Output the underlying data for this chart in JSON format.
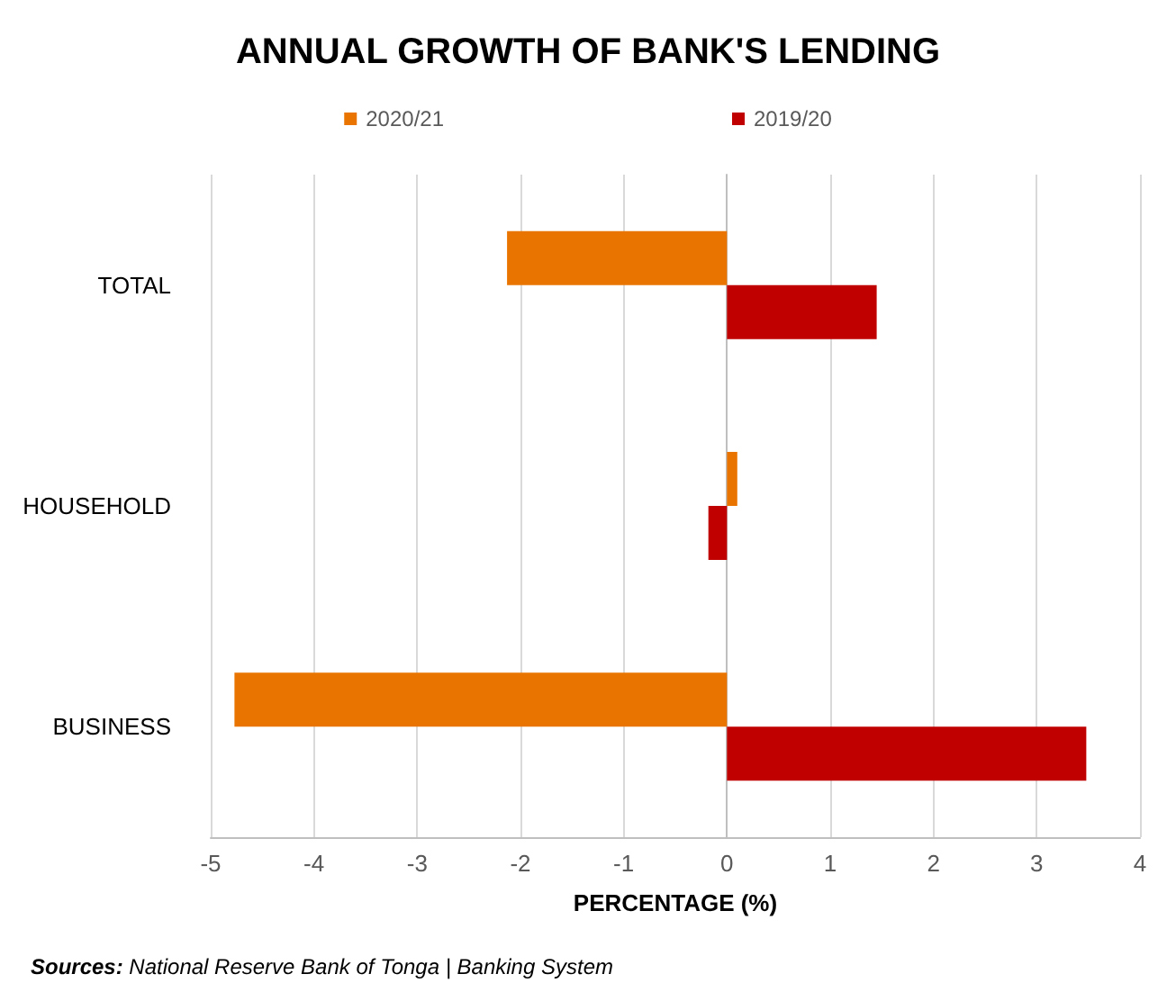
{
  "chart_data": {
    "type": "bar",
    "orientation": "horizontal",
    "title": "ANNUAL GROWTH OF BANK'S LENDING",
    "xlabel": "PERCENTAGE (%)",
    "categories": [
      "TOTAL",
      "HOUSEHOLD",
      "BUSINESS"
    ],
    "series": [
      {
        "name": "2020/21",
        "color": "#e97500",
        "values": [
          -2.13,
          0.1,
          -4.77
        ]
      },
      {
        "name": "2019/20",
        "color": "#c00000",
        "values": [
          1.45,
          -0.18,
          3.48
        ]
      }
    ],
    "xlim": [
      -5,
      4
    ],
    "xticks": [
      -5,
      -4,
      -3,
      -2,
      -1,
      0,
      1,
      2,
      3,
      4
    ],
    "grid": "x",
    "legend": "top",
    "annotations": [
      "Sources: National Reserve Bank of Tonga | Banking System"
    ]
  }
}
